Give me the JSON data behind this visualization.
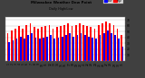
{
  "title": "Milwaukee Weather Dew Point",
  "subtitle": "Daily High/Low",
  "high_color": "#ff0000",
  "low_color": "#0000ff",
  "fig_bg": "#404040",
  "plot_bg": "#ffffff",
  "ylim": [
    0,
    75
  ],
  "yticks": [
    10,
    20,
    30,
    40,
    50,
    60,
    70
  ],
  "days": [
    "1",
    "2",
    "3",
    "4",
    "5",
    "6",
    "7",
    "8",
    "9",
    "10",
    "11",
    "12",
    "13",
    "14",
    "15",
    "16",
    "17",
    "18",
    "19",
    "20",
    "21",
    "22",
    "23",
    "24",
    "25",
    "26",
    "27",
    "28",
    "29",
    "30",
    "31"
  ],
  "highs": [
    48,
    52,
    55,
    60,
    55,
    62,
    65,
    58,
    55,
    58,
    60,
    62,
    55,
    58,
    60,
    62,
    65,
    60,
    62,
    65,
    62,
    60,
    58,
    55,
    62,
    65,
    68,
    65,
    62,
    55,
    45
  ],
  "lows": [
    32,
    35,
    38,
    42,
    38,
    45,
    48,
    40,
    38,
    40,
    42,
    45,
    38,
    40,
    42,
    45,
    48,
    42,
    45,
    48,
    45,
    42,
    40,
    38,
    45,
    48,
    52,
    48,
    45,
    38,
    25
  ]
}
